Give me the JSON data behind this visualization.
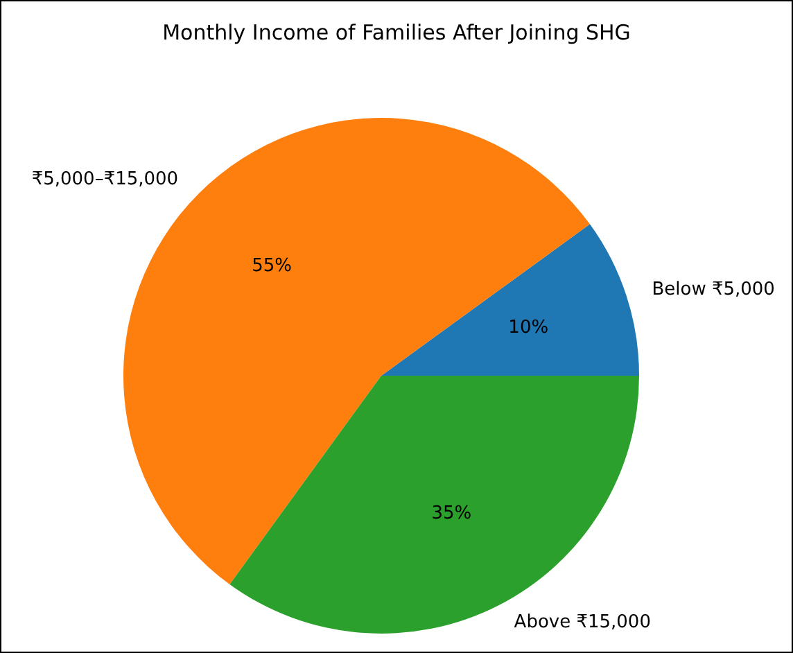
{
  "chart_data": {
    "type": "pie",
    "title": "Monthly Income of Families After Joining SHG",
    "categories": [
      "Below ₹5,000",
      "₹5,000–₹15,000",
      "Above ₹15,000"
    ],
    "values": [
      10,
      55,
      35
    ],
    "colors": [
      "#1f77b4",
      "#ff7f0e",
      "#2ca02c"
    ],
    "value_labels": [
      "10%",
      "55%",
      "35%"
    ]
  }
}
